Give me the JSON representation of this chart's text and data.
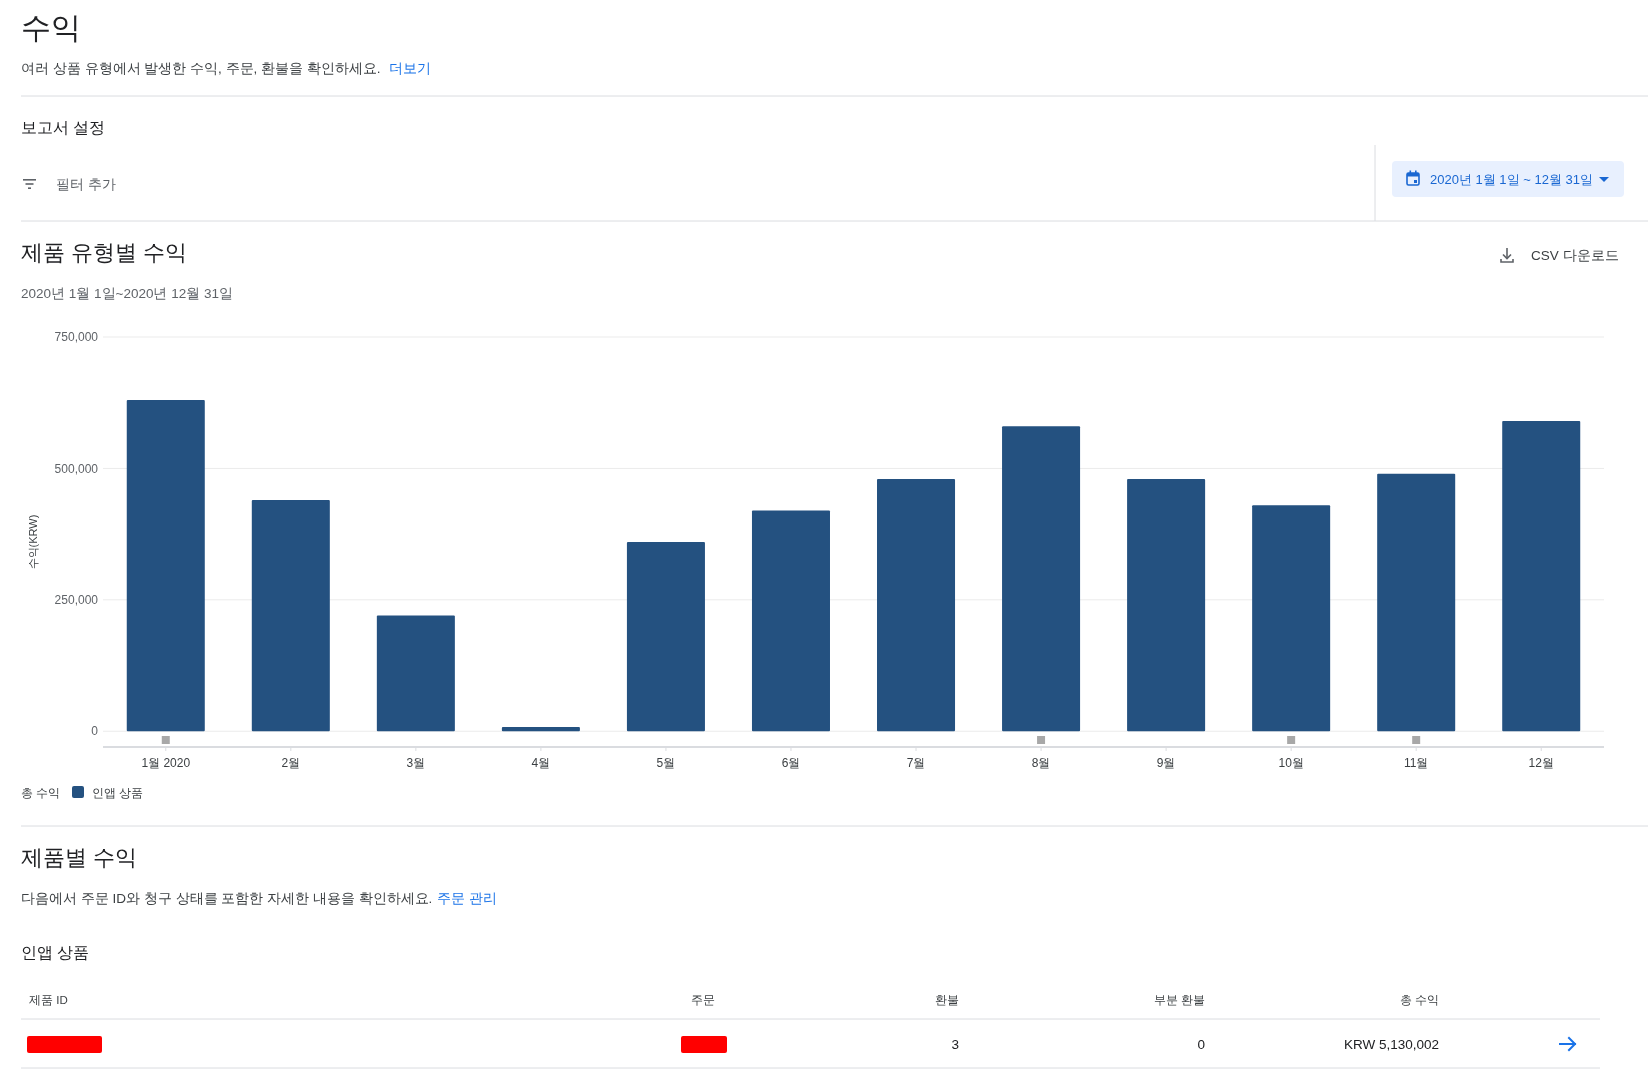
{
  "chart_data": [
    {
      "type": "other",
      "title": "수익",
      "annotations": [
        "여러 상품 유형에서 발생한 수익, 주문, 환불을 확인하세요.",
        "더보기",
        "보고서 설정",
        "필터 추가",
        "2020년 1월 1일 ~ 12월 31일"
      ]
    },
    {
      "type": "bar",
      "title": "제품 유형별 수익",
      "subtitle": "2020년 1월 1일~2020년 12월 31일",
      "ylabel": "수익(KRW)",
      "legend_title": "총 수익",
      "categories": [
        "1월 2020",
        "2월",
        "3월",
        "4월",
        "5월",
        "6월",
        "7월",
        "8월",
        "9월",
        "10월",
        "11월",
        "12월"
      ],
      "series": [
        {
          "name": "인앱 상품",
          "color": "#245180",
          "values": [
            630000,
            440000,
            220000,
            8000,
            360000,
            420000,
            480000,
            580000,
            480000,
            430000,
            490000,
            590000
          ]
        }
      ],
      "ylim": [
        -30000,
        750000
      ],
      "yticks": [
        {
          "value": 0,
          "label": "0"
        },
        {
          "value": 250000,
          "label": "250,000"
        },
        {
          "value": 500000,
          "label": "500,000"
        },
        {
          "value": 750000,
          "label": "750,000"
        }
      ],
      "grid": "y",
      "legend": "bottom left",
      "annotations": [
        "CSV 다운로드"
      ]
    },
    {
      "type": "other",
      "title": "제품별 수익",
      "annotations": [
        "다음에서 주문 ID와 청구 상태를 포함한 자세한 내용을 확인하세요.",
        "주문 관리",
        "인앱 상품",
        "제품 ID",
        "주문",
        "환불",
        "부분 환불",
        "총 수익",
        "3",
        "0",
        "KRW 5,130,002"
      ]
    }
  ]
}
